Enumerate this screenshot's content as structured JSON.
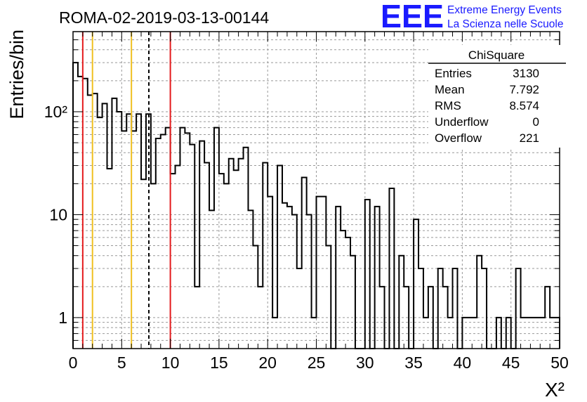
{
  "header": {
    "run_title": "ROMA-02-2019-03-13-00144",
    "logo_text": "EEE",
    "project_line1": "Extreme Energy Events",
    "project_line2": "La Scienza nelle Scuole"
  },
  "colors": {
    "histogram": "#000000",
    "red_line": "#e41a1c",
    "yellow_line": "#f0c020",
    "logo_blue": "#1a1aff",
    "grid": "#999999"
  },
  "stats_box": {
    "title": "ChiSquare",
    "rows": [
      {
        "label": "Entries",
        "value": "3130"
      },
      {
        "label": "Mean",
        "value": "7.792"
      },
      {
        "label": "RMS",
        "value": "8.574"
      },
      {
        "label": "Underflow",
        "value": "0"
      },
      {
        "label": "Overflow",
        "value": "221"
      }
    ]
  },
  "chart_data": {
    "type": "histogram",
    "title": "ROMA-02-2019-03-13-00144",
    "xlabel": "X²",
    "ylabel": "Entries/bin",
    "xlim": [
      0,
      50
    ],
    "ylim": [
      0.5,
      600
    ],
    "yscale": "log",
    "grid": true,
    "bin_width": 0.5,
    "x_ticks": [
      "0",
      "5",
      "10",
      "15",
      "20",
      "25",
      "30",
      "35",
      "40",
      "45",
      "50"
    ],
    "y_ticks": [
      {
        "value": 1,
        "label": "1"
      },
      {
        "value": 10,
        "label": "10"
      },
      {
        "value": 100,
        "label": "10²"
      }
    ],
    "bin_contents": [
      300,
      220,
      210,
      145,
      150,
      88,
      120,
      28,
      135,
      100,
      65,
      95,
      65,
      95,
      22,
      95,
      20,
      55,
      60,
      70,
      25,
      30,
      70,
      62,
      48,
      2,
      52,
      32,
      11,
      70,
      25,
      20,
      35,
      27,
      35,
      45,
      11,
      5,
      2,
      32,
      15,
      1,
      30,
      13,
      12,
      10,
      3,
      23,
      10,
      1,
      15,
      15,
      5,
      0.5,
      12,
      7,
      6,
      4,
      0.5,
      0.5,
      14,
      0.5,
      12,
      2,
      0.5,
      18,
      0.5,
      4,
      2,
      0.5,
      9,
      3,
      1,
      2,
      0.5,
      3,
      2,
      1,
      3,
      0,
      1,
      1,
      1,
      4,
      3,
      0.5,
      0.5,
      1,
      0.5,
      1,
      0.5,
      3,
      1,
      1,
      1,
      1,
      1,
      2,
      1,
      1
    ],
    "vertical_lines": [
      {
        "x": 1,
        "color": "red",
        "style": "solid"
      },
      {
        "x": 2,
        "color": "yellow",
        "style": "solid"
      },
      {
        "x": 6,
        "color": "yellow",
        "style": "solid"
      },
      {
        "x": 7.792,
        "color": "black",
        "style": "dashed"
      },
      {
        "x": 10,
        "color": "red",
        "style": "solid"
      }
    ]
  }
}
